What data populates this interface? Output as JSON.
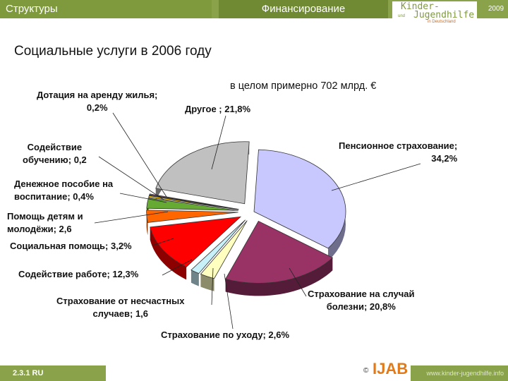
{
  "header": {
    "tab_left": "Структуры",
    "tab_mid": "Финансирование",
    "year": "2009",
    "logo": {
      "line1": "Kinder-",
      "small": "und",
      "line2": "Jugendhilfe",
      "line3": "in Deutschland"
    }
  },
  "footer": {
    "code": "2.3.1 RU",
    "copyright": "©",
    "brand": "IJAB",
    "url": "www.kinder-jugendhilfe.info"
  },
  "chart_data": {
    "type": "pie",
    "title": "Социальные услуги в 2006 году",
    "subtitle": "в целом примерно 702 млрд. €",
    "slices": [
      {
        "name": "Пенсионное страхование",
        "value": 34.2,
        "label": "Пенсионное страхование; 34,2%",
        "color": "#c8c8ff",
        "exploded": false
      },
      {
        "name": "Страхование на случай болезни",
        "value": 20.8,
        "label": "Страхование на случай болезни; 20,8%",
        "color": "#993366",
        "exploded": true
      },
      {
        "name": "Страхование по уходу",
        "value": 2.6,
        "label": "Страхование по уходу; 2,6%",
        "color": "#ffffc0",
        "exploded": true
      },
      {
        "name": "Страхование от несчастных случаев",
        "value": 1.6,
        "label": "Страхование от несчастных случаев; 1,6",
        "color": "#c8f0f8",
        "exploded": true
      },
      {
        "name": "Содействие работе",
        "value": 12.3,
        "label": "Содействие работе; 12,3%",
        "color": "#ff0000",
        "exploded": true
      },
      {
        "name": "Социальная помощь",
        "value": 3.2,
        "label": "Социальная помощь; 3,2%",
        "color": "#ff6600",
        "exploded": true
      },
      {
        "name": "Помощь детям и молодёжи",
        "value": 2.6,
        "label": "Помощь детям и молодёжи; 2,6",
        "color": "#66aa33",
        "exploded": true
      },
      {
        "name": "Денежное пособие на воспитание",
        "value": 0.4,
        "label": "Денежное пособие на воспитание; 0,4%",
        "color": "#ffcc00",
        "exploded": true
      },
      {
        "name": "Содействие обучению",
        "value": 0.2,
        "label": "Содействие обучению; 0,2",
        "color": "#3366cc",
        "exploded": true
      },
      {
        "name": "Дотация на аренду жилья",
        "value": 0.2,
        "label": "Дотация на аренду жилья; 0,2%",
        "color": "#ff99cc",
        "exploded": true
      },
      {
        "name": "Другое",
        "value": 21.8,
        "label": "Другое ; 21,8%",
        "color": "#c0c0c0",
        "exploded": true
      }
    ],
    "legend": "none",
    "grid": false
  }
}
